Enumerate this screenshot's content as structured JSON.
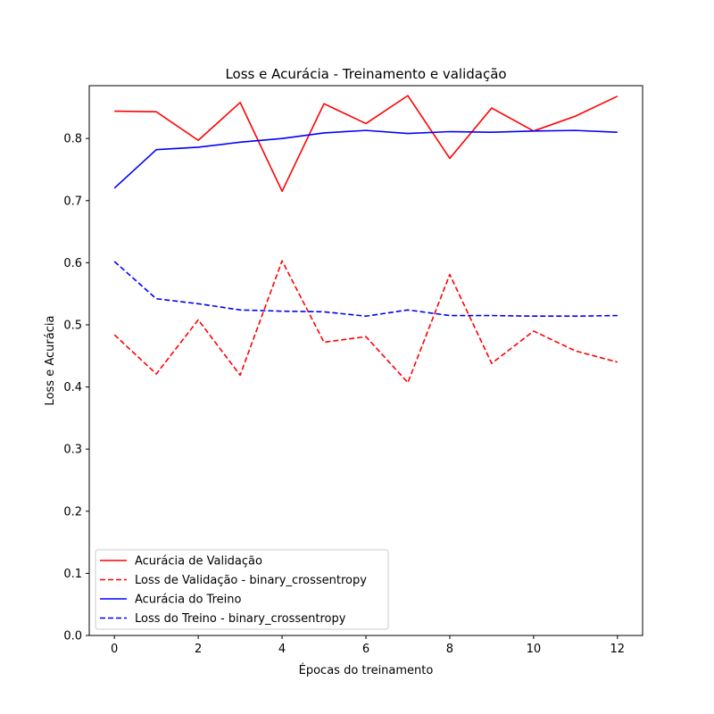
{
  "chart_data": {
    "type": "line",
    "title": "Loss e Acurácia - Treinamento e validação",
    "xlabel": "Épocas do treinamento",
    "ylabel": "Loss e Acurácia",
    "xlim": [
      -0.6,
      12.6
    ],
    "ylim": [
      0.0,
      0.885
    ],
    "xticks": [
      0,
      2,
      4,
      6,
      8,
      10,
      12
    ],
    "yticks": [
      0.0,
      0.1,
      0.2,
      0.3,
      0.4,
      0.5,
      0.6,
      0.7,
      0.8
    ],
    "ytick_labels": [
      "0.0",
      "0.1",
      "0.2",
      "0.3",
      "0.4",
      "0.5",
      "0.6",
      "0.7",
      "0.8"
    ],
    "xtick_labels": [
      "0",
      "2",
      "4",
      "6",
      "8",
      "10",
      "12"
    ],
    "grid": false,
    "legend_position": "lower-left",
    "x": [
      0,
      1,
      2,
      3,
      4,
      5,
      6,
      7,
      8,
      9,
      10,
      11,
      12
    ],
    "series": [
      {
        "name": "Acurácia de Validação",
        "color": "#ff0000",
        "dash": "solid",
        "values": [
          0.844,
          0.843,
          0.797,
          0.858,
          0.715,
          0.856,
          0.824,
          0.869,
          0.768,
          0.849,
          0.812,
          0.836,
          0.868
        ]
      },
      {
        "name": "Loss de Validação - binary_crossentropy",
        "color": "#ff0000",
        "dash": "dashed",
        "values": [
          0.484,
          0.421,
          0.508,
          0.419,
          0.603,
          0.472,
          0.481,
          0.407,
          0.581,
          0.438,
          0.49,
          0.458,
          0.44
        ]
      },
      {
        "name": "Acurácia do Treino",
        "color": "#0000ff",
        "dash": "solid",
        "values": [
          0.72,
          0.782,
          0.786,
          0.794,
          0.8,
          0.809,
          0.813,
          0.808,
          0.811,
          0.81,
          0.812,
          0.813,
          0.81
        ]
      },
      {
        "name": "Loss do Treino - binary_crossentropy",
        "color": "#0000ff",
        "dash": "dashed",
        "values": [
          0.602,
          0.542,
          0.534,
          0.524,
          0.522,
          0.521,
          0.514,
          0.524,
          0.515,
          0.515,
          0.514,
          0.514,
          0.515
        ]
      }
    ]
  }
}
